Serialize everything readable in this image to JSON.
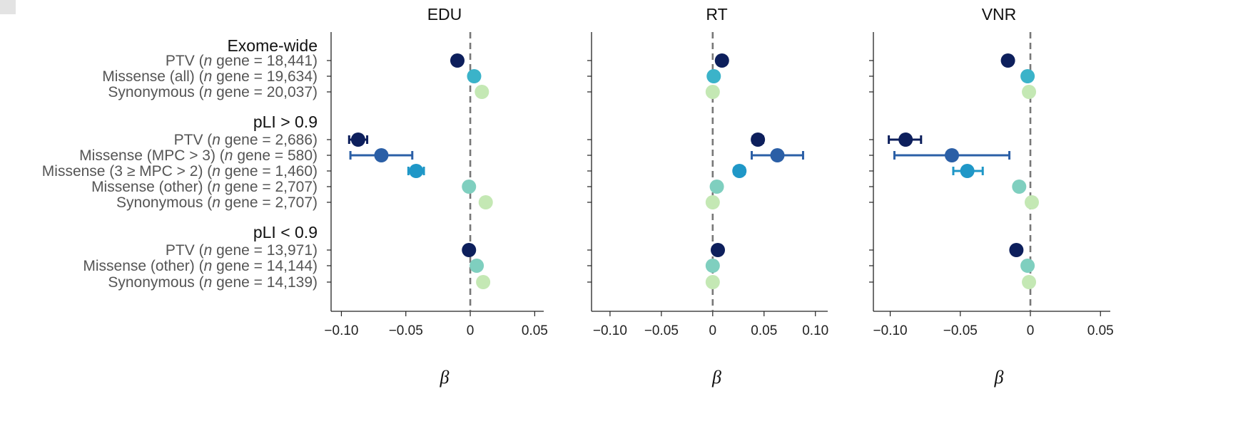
{
  "chart_data": {
    "type": "forest",
    "xlabel": "β",
    "groups": [
      {
        "label": "Exome-wide",
        "rows": [
          {
            "key": "ew_ptv",
            "pre": "PTV (",
            "n": "n",
            "post": " gene = 18,441)",
            "color": "#0d1f5c"
          },
          {
            "key": "ew_mis",
            "pre": "Missense (all) (",
            "n": "n",
            "post": " gene = 19,634)",
            "color": "#3bb3c9"
          },
          {
            "key": "ew_syn",
            "pre": "Synonymous (",
            "n": "n",
            "post": " gene = 20,037)",
            "color": "#c4e8b4"
          }
        ]
      },
      {
        "label": "pLI > 0.9",
        "rows": [
          {
            "key": "hi_ptv",
            "pre": "PTV (",
            "n": "n",
            "post": " gene = 2,686)",
            "color": "#0d1f5c"
          },
          {
            "key": "hi_mpc3",
            "pre": "Missense (MPC > 3) (",
            "n": "n",
            "post": " gene = 580)",
            "color": "#2b5fa6"
          },
          {
            "key": "hi_mpc2",
            "pre": "Missense (3 ≥ MPC > 2) (",
            "n": "n",
            "post": " gene = 1,460)",
            "color": "#1f97c7"
          },
          {
            "key": "hi_oth",
            "pre": "Missense (other) (",
            "n": "n",
            "post": " gene = 2,707)",
            "color": "#7fcfbf"
          },
          {
            "key": "hi_syn",
            "pre": "Synonymous (",
            "n": "n",
            "post": " gene = 2,707)",
            "color": "#c4e8b4"
          }
        ]
      },
      {
        "label": "pLI < 0.9",
        "rows": [
          {
            "key": "lo_ptv",
            "pre": "PTV (",
            "n": "n",
            "post": " gene = 13,971)",
            "color": "#0d1f5c"
          },
          {
            "key": "lo_oth",
            "pre": "Missense (other) (",
            "n": "n",
            "post": " gene = 14,144)",
            "color": "#7fcfbf"
          },
          {
            "key": "lo_syn",
            "pre": "Synonymous (",
            "n": "n",
            "post": " gene = 14,139)",
            "color": "#c4e8b4"
          }
        ]
      }
    ],
    "panels": [
      {
        "title": "EDU",
        "xlim": [
          -0.108,
          0.057
        ],
        "ticks": [
          -0.1,
          -0.05,
          0,
          0.05
        ],
        "tick_labels": [
          "−0.10",
          "−0.05",
          "0",
          "0.05"
        ],
        "points": {
          "ew_ptv": {
            "est": -0.01
          },
          "ew_mis": {
            "est": 0.003
          },
          "ew_syn": {
            "est": 0.009
          },
          "hi_ptv": {
            "est": -0.087,
            "lo": -0.094,
            "hi": -0.08
          },
          "hi_mpc3": {
            "est": -0.069,
            "lo": -0.093,
            "hi": -0.045
          },
          "hi_mpc2": {
            "est": -0.042,
            "lo": -0.048,
            "hi": -0.036
          },
          "hi_oth": {
            "est": -0.001
          },
          "hi_syn": {
            "est": 0.012
          },
          "lo_ptv": {
            "est": -0.001
          },
          "lo_oth": {
            "est": 0.005
          },
          "lo_syn": {
            "est": 0.01
          }
        }
      },
      {
        "title": "RT",
        "xlim": [
          -0.118,
          0.112
        ],
        "ticks": [
          -0.1,
          -0.05,
          0,
          0.05,
          0.1
        ],
        "tick_labels": [
          "−0.10",
          "−0.05",
          "0",
          "0.05",
          "0.10"
        ],
        "points": {
          "ew_ptv": {
            "est": 0.009
          },
          "ew_mis": {
            "est": 0.001
          },
          "ew_syn": {
            "est": 0.0
          },
          "hi_ptv": {
            "est": 0.044,
            "lo": 0.039,
            "hi": 0.049
          },
          "hi_mpc3": {
            "est": 0.063,
            "lo": 0.038,
            "hi": 0.088
          },
          "hi_mpc2": {
            "est": 0.026,
            "lo": 0.021,
            "hi": 0.031
          },
          "hi_oth": {
            "est": 0.004
          },
          "hi_syn": {
            "est": 0.0
          },
          "lo_ptv": {
            "est": 0.005
          },
          "lo_oth": {
            "est": 0.0
          },
          "lo_syn": {
            "est": 0.0
          }
        }
      },
      {
        "title": "VNR",
        "xlim": [
          -0.112,
          0.057
        ],
        "ticks": [
          -0.1,
          -0.05,
          0,
          0.05
        ],
        "tick_labels": [
          "−0.10",
          "−0.05",
          "0",
          "0.05"
        ],
        "points": {
          "ew_ptv": {
            "est": -0.016
          },
          "ew_mis": {
            "est": -0.002
          },
          "ew_syn": {
            "est": -0.001
          },
          "hi_ptv": {
            "est": -0.089,
            "lo": -0.101,
            "hi": -0.078
          },
          "hi_mpc3": {
            "est": -0.056,
            "lo": -0.097,
            "hi": -0.015
          },
          "hi_mpc2": {
            "est": -0.045,
            "lo": -0.055,
            "hi": -0.034
          },
          "hi_oth": {
            "est": -0.008
          },
          "hi_syn": {
            "est": 0.001
          },
          "lo_ptv": {
            "est": -0.01
          },
          "lo_oth": {
            "est": -0.002
          },
          "lo_syn": {
            "est": -0.001
          }
        }
      }
    ]
  }
}
